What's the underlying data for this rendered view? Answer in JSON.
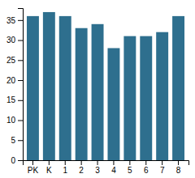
{
  "chart_data": {
    "type": "bar",
    "categories": [
      "PK",
      "K",
      "1",
      "2",
      "3",
      "4",
      "5",
      "6",
      "7",
      "8"
    ],
    "values": [
      36,
      37,
      36,
      33,
      34,
      28,
      31,
      31,
      32,
      36
    ],
    "color": "#2e6f8e",
    "ylim": [
      0,
      38
    ],
    "yticks": [
      0,
      5,
      10,
      15,
      20,
      25,
      30,
      35
    ],
    "grid": false
  }
}
